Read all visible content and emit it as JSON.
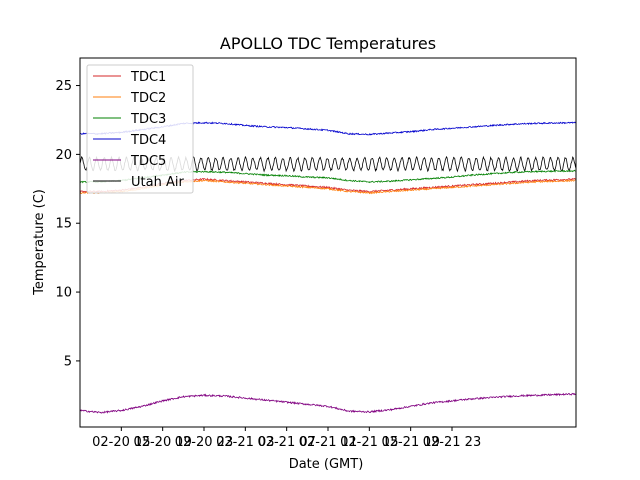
{
  "chart_data": {
    "type": "line",
    "title": "APOLLO TDC Temperatures",
    "xlabel": "Date (GMT)",
    "ylabel": "Temperature (C)",
    "xlim": [
      11.0,
      59.0
    ],
    "ylim": [
      0.2,
      27.0
    ],
    "grid": false,
    "legend": "top-left",
    "xticks": [
      {
        "value": 15,
        "label": "02-20 15"
      },
      {
        "value": 19,
        "label": "02-20 19"
      },
      {
        "value": 23,
        "label": "02-20 23"
      },
      {
        "value": 27,
        "label": "02-21 03"
      },
      {
        "value": 31,
        "label": "02-21 07"
      },
      {
        "value": 35,
        "label": "02-21 11"
      },
      {
        "value": 39,
        "label": "02-21 15"
      },
      {
        "value": 43,
        "label": "02-21 19"
      },
      {
        "value": 47,
        "label": "02-21 23"
      }
    ],
    "yticks": [
      5,
      10,
      15,
      20,
      25
    ],
    "series": [
      {
        "name": "TDC1",
        "color": "#d62728",
        "x": [
          11,
          13,
          15,
          17,
          19,
          21,
          23,
          25,
          27,
          29,
          31,
          33,
          35,
          37,
          39,
          41,
          43,
          45,
          47,
          49,
          51,
          53,
          55,
          57,
          59
        ],
        "values": [
          17.3,
          17.3,
          17.4,
          17.6,
          17.9,
          18.1,
          18.2,
          18.1,
          18.0,
          17.9,
          17.8,
          17.7,
          17.6,
          17.4,
          17.3,
          17.4,
          17.5,
          17.6,
          17.7,
          17.8,
          17.9,
          18.0,
          18.1,
          18.15,
          18.2
        ],
        "noise": 0.06
      },
      {
        "name": "TDC2",
        "color": "#ff7f0e",
        "x": [
          11,
          13,
          15,
          17,
          19,
          21,
          23,
          25,
          27,
          29,
          31,
          33,
          35,
          37,
          39,
          41,
          43,
          45,
          47,
          49,
          51,
          53,
          55,
          57,
          59
        ],
        "values": [
          17.2,
          17.2,
          17.3,
          17.5,
          17.8,
          18.0,
          18.1,
          18.0,
          17.9,
          17.8,
          17.7,
          17.6,
          17.5,
          17.3,
          17.2,
          17.3,
          17.4,
          17.5,
          17.6,
          17.7,
          17.8,
          17.9,
          18.0,
          18.05,
          18.1
        ],
        "noise": 0.05
      },
      {
        "name": "TDC3",
        "color": "#008000",
        "x": [
          11,
          13,
          15,
          17,
          19,
          21,
          23,
          25,
          27,
          29,
          31,
          33,
          35,
          37,
          39,
          41,
          43,
          45,
          47,
          49,
          51,
          53,
          55,
          57,
          59
        ],
        "values": [
          18.0,
          18.0,
          18.1,
          18.3,
          18.5,
          18.7,
          18.75,
          18.7,
          18.6,
          18.5,
          18.45,
          18.35,
          18.3,
          18.1,
          18.0,
          18.05,
          18.15,
          18.25,
          18.35,
          18.5,
          18.6,
          18.7,
          18.75,
          18.78,
          18.8
        ],
        "noise": 0.05
      },
      {
        "name": "TDC4",
        "color": "#0000cd",
        "x": [
          11,
          13,
          15,
          17,
          19,
          21,
          23,
          25,
          27,
          29,
          31,
          33,
          35,
          37,
          39,
          41,
          43,
          45,
          47,
          49,
          51,
          53,
          55,
          57,
          59
        ],
        "values": [
          21.5,
          21.5,
          21.6,
          21.8,
          22.0,
          22.25,
          22.3,
          22.25,
          22.1,
          22.0,
          21.95,
          21.85,
          21.75,
          21.5,
          21.45,
          21.55,
          21.65,
          21.8,
          21.9,
          22.0,
          22.1,
          22.2,
          22.25,
          22.28,
          22.3
        ],
        "noise": 0.05
      },
      {
        "name": "TDC5",
        "color": "#800080",
        "x": [
          11,
          13,
          15,
          17,
          19,
          21,
          23,
          25,
          27,
          29,
          31,
          33,
          35,
          37,
          39,
          41,
          43,
          45,
          47,
          49,
          51,
          53,
          55,
          57,
          59
        ],
        "values": [
          1.4,
          1.25,
          1.4,
          1.7,
          2.1,
          2.4,
          2.5,
          2.45,
          2.3,
          2.15,
          2.0,
          1.85,
          1.7,
          1.35,
          1.3,
          1.45,
          1.7,
          1.95,
          2.1,
          2.25,
          2.35,
          2.45,
          2.5,
          2.55,
          2.6
        ],
        "noise": 0.06
      },
      {
        "name": "Utah Air",
        "color": "#000000",
        "x": [
          11,
          59
        ],
        "values": [
          19.3,
          19.3
        ],
        "oscillation": {
          "amplitude": 0.45,
          "period": 0.72
        },
        "noise": 0.08
      }
    ]
  }
}
